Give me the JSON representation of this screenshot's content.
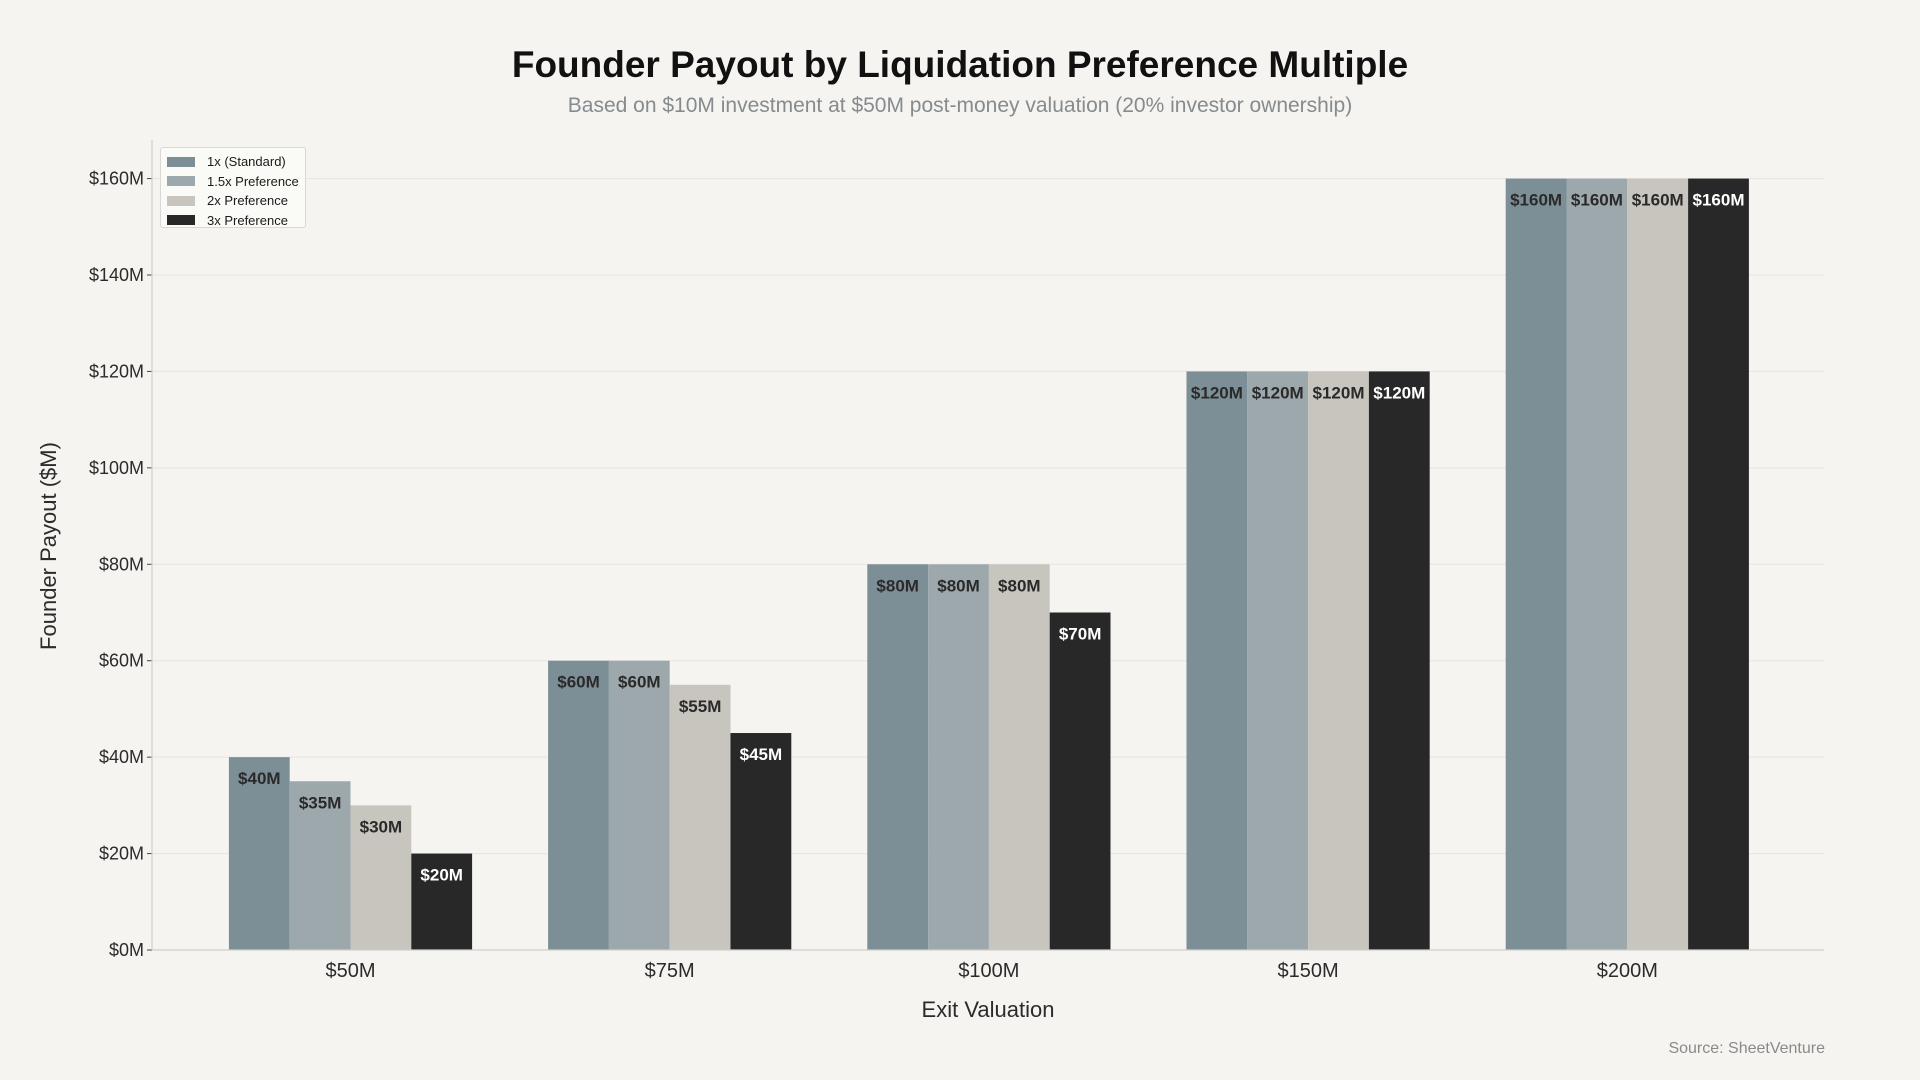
{
  "chart_data": {
    "type": "bar",
    "title": "Founder Payout by Liquidation Preference Multiple",
    "subtitle": "Based on $10M investment at $50M post-money valuation (20% investor ownership)",
    "xlabel": "Exit Valuation",
    "ylabel": "Founder Payout ($M)",
    "categories": [
      "$50M",
      "$75M",
      "$100M",
      "$150M",
      "$200M"
    ],
    "ylim": [
      0,
      168
    ],
    "yticks": [
      0,
      20,
      40,
      60,
      80,
      100,
      120,
      140,
      160
    ],
    "ytick_labels": [
      "$0M",
      "$20M",
      "$40M",
      "$60M",
      "$80M",
      "$100M",
      "$120M",
      "$140M",
      "$160M"
    ],
    "grid": true,
    "legend_position": "top-left",
    "series": [
      {
        "name": "1x (Standard)",
        "color": "#7d8f96",
        "label_color": "#2a2a2a",
        "values": [
          40,
          60,
          80,
          120,
          160
        ],
        "labels": [
          "$40M",
          "$60M",
          "$80M",
          "$120M",
          "$160M"
        ]
      },
      {
        "name": "1.5x Preference",
        "color": "#9da8ad",
        "label_color": "#2a2a2a",
        "values": [
          35,
          60,
          80,
          120,
          160
        ],
        "labels": [
          "$35M",
          "$60M",
          "$80M",
          "$120M",
          "$160M"
        ]
      },
      {
        "name": "2x Preference",
        "color": "#c8c5bf",
        "label_color": "#2a2a2a",
        "values": [
          30,
          55,
          80,
          120,
          160
        ],
        "labels": [
          "$30M",
          "$55M",
          "$80M",
          "$120M",
          "$160M"
        ]
      },
      {
        "name": "3x Preference",
        "color": "#282828",
        "label_color": "#ffffff",
        "values": [
          20,
          45,
          70,
          120,
          160
        ],
        "labels": [
          "$20M",
          "$45M",
          "$70M",
          "$120M",
          "$160M"
        ]
      }
    ]
  },
  "source": "Source: SheetVenture"
}
